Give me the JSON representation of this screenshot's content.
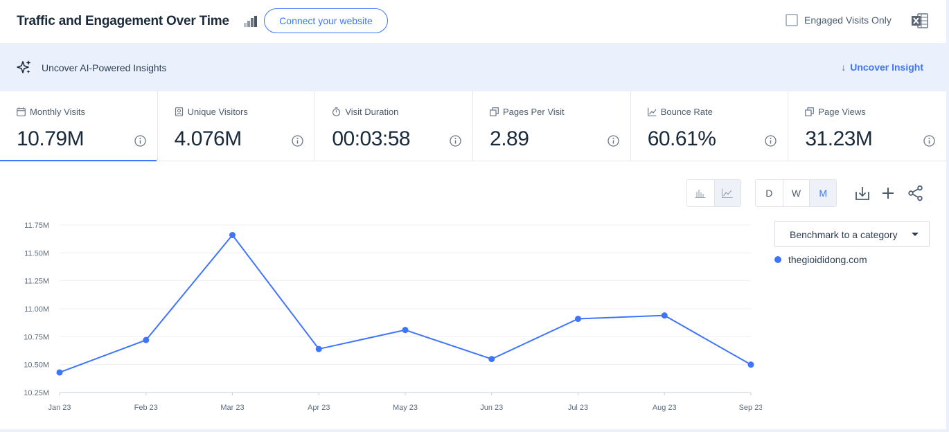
{
  "header": {
    "title": "Traffic and Engagement Over Time",
    "connect_label": "Connect your website",
    "engaged_label": "Engaged Visits Only"
  },
  "banner": {
    "text": "Uncover AI-Powered Insights",
    "link": "Uncover Insight"
  },
  "metrics": [
    {
      "label": "Monthly Visits",
      "value": "10.79M",
      "icon": "calendar-icon",
      "active": true
    },
    {
      "label": "Unique Visitors",
      "value": "4.076M",
      "icon": "id-badge-icon",
      "active": false
    },
    {
      "label": "Visit Duration",
      "value": "00:03:58",
      "icon": "stopwatch-icon",
      "active": false
    },
    {
      "label": "Pages Per Visit",
      "value": "2.89",
      "icon": "pages-icon",
      "active": false
    },
    {
      "label": "Bounce Rate",
      "value": "60.61%",
      "icon": "trend-icon",
      "active": false
    },
    {
      "label": "Page Views",
      "value": "31.23M",
      "icon": "pages-icon",
      "active": false
    }
  ],
  "controls": {
    "granularity": [
      "D",
      "W",
      "M"
    ],
    "selected_granularity": "M",
    "chart_type_selected": "line"
  },
  "benchmark": {
    "label": "Benchmark to a category"
  },
  "colors": {
    "accent": "#3e74fe",
    "banner_bg": "#eaf1fc"
  },
  "chart_data": {
    "type": "line",
    "categories": [
      "Jan 23",
      "Feb 23",
      "Mar 23",
      "Apr 23",
      "May 23",
      "Jun 23",
      "Jul 23",
      "Aug 23",
      "Sep 23"
    ],
    "series": [
      {
        "name": "thegioididong.com",
        "values": [
          10.43,
          10.72,
          11.66,
          10.64,
          10.81,
          10.55,
          10.91,
          10.94,
          10.5
        ]
      }
    ],
    "y_ticks": [
      "10.25M",
      "10.50M",
      "10.75M",
      "11.00M",
      "11.25M",
      "11.50M",
      "11.75M"
    ],
    "ylim": [
      10.25,
      11.75
    ],
    "y_unit": "M",
    "grid": true,
    "legend_position": "right"
  }
}
